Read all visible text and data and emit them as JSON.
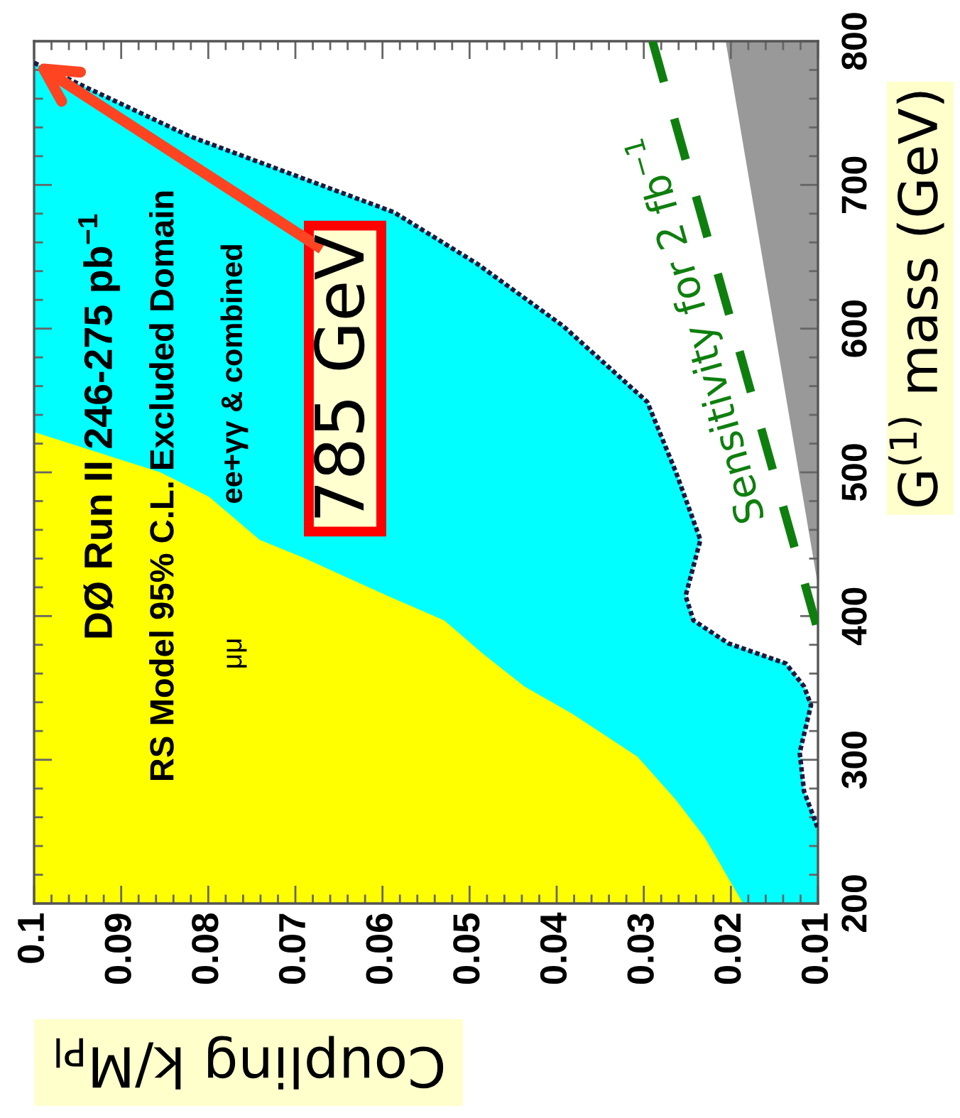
{
  "chart_data": {
    "type": "area",
    "title": "DØ Run II 246-275 pb$^{−1}$",
    "subtitle": "RS Model 95% C.L. Excluded Domain",
    "xlabel": "Coupling k/M$_{Pl}$",
    "ylabel": "G$^{(1)}$ mass (GeV)",
    "xlim": [
      0.1,
      0.01
    ],
    "xticks": [
      0.1,
      0.09,
      0.08,
      0.07,
      0.06,
      0.05,
      0.04,
      0.03,
      0.02,
      0.01
    ],
    "ylim": [
      200,
      800
    ],
    "yticks": [
      200,
      300,
      400,
      500,
      600,
      700,
      800
    ],
    "series": [
      {
        "name": "ee+γγ & combined",
        "color": "#00ffff",
        "line_style": "dotted",
        "x": [
          0.1,
          0.0822,
          0.0587,
          0.0491,
          0.0393,
          0.0296,
          0.0263,
          0.0235,
          0.0252,
          0.0243,
          0.0203,
          0.0137,
          0.0116,
          0.0108,
          0.0121,
          0.0116,
          0.01
        ],
        "values": [
          785,
          734,
          681,
          645,
          602,
          549,
          500,
          453,
          414,
          397,
          381,
          367,
          351,
          338,
          305,
          278,
          252
        ]
      },
      {
        "name": "μμ",
        "color": "#ffff00",
        "x": [
          0.1,
          0.0855,
          0.0799,
          0.0741,
          0.0692,
          0.0594,
          0.0529,
          0.0485,
          0.0437,
          0.0382,
          0.0307,
          0.0263,
          0.023,
          0.0186
        ],
        "values": [
          528,
          500,
          483,
          453,
          441,
          414,
          397,
          374,
          351,
          332,
          302,
          272,
          246,
          200
        ]
      },
      {
        "color": "#999999",
        "x": [
          0.01,
          0.0206
        ],
        "values": [
          421,
          800
        ]
      },
      {
        "type": "line",
        "name": "Sensitivity for 2 fb$^{−1}$",
        "color": "#0e7f0e",
        "line_style": "dashed",
        "x": [
          0.029,
          0.0102
        ],
        "values": [
          800,
          394
        ]
      }
    ],
    "annotations": [
      {
        "text": "785 GeV",
        "x": 0.1,
        "y": 785
      }
    ]
  }
}
